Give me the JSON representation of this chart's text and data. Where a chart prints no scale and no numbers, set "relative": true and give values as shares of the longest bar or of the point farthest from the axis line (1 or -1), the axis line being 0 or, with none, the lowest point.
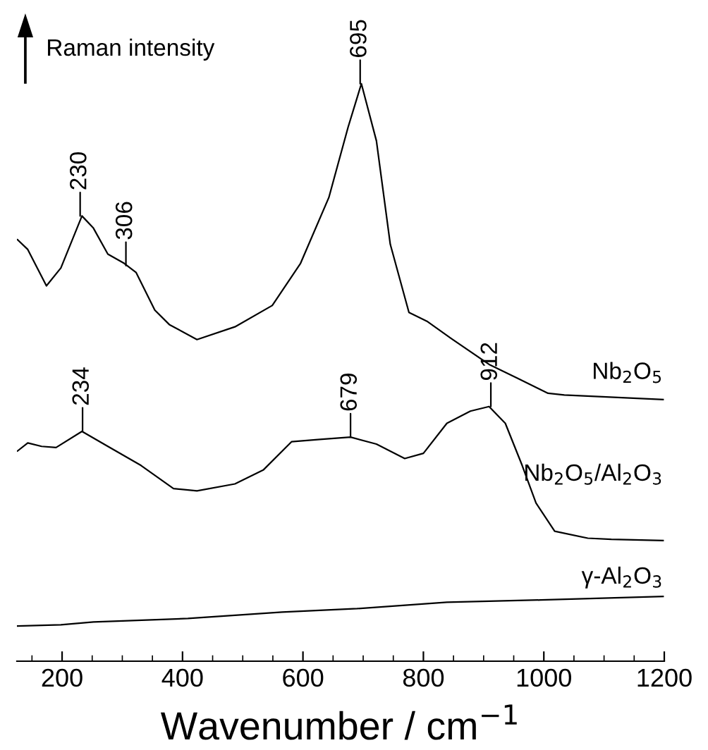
{
  "chart_data": {
    "type": "line",
    "relative": true,
    "xlabel": "Wavenumber / cm$^{−1}$",
    "ylabel": "Raman intensity",
    "xlim": [
      125,
      1200
    ],
    "xticks": [
      200,
      400,
      600,
      800,
      1000,
      1200
    ],
    "grid": false,
    "legend": false,
    "marker": "none",
    "line_style": "solid",
    "series": [
      {
        "name": "Nb$_{2}$O$_{5}$",
        "color": "#000000",
        "x": [
          126,
          143,
          174,
          198,
          233,
          252,
          276,
          303,
          323,
          354,
          378,
          424,
          487,
          549,
          596,
          643,
          675,
          697,
          722,
          745,
          776,
          807,
          846,
          909,
          956,
          1007,
          1034,
          1198
        ],
        "values": [
          0.73,
          0.713,
          0.65,
          0.681,
          0.771,
          0.75,
          0.705,
          0.689,
          0.673,
          0.608,
          0.583,
          0.557,
          0.579,
          0.616,
          0.689,
          0.803,
          0.925,
          1.0,
          0.901,
          0.722,
          0.604,
          0.588,
          0.559,
          0.514,
          0.49,
          0.464,
          0.461,
          0.453
        ]
      },
      {
        "name": "Nb$_{2}$O$_{5}$/Al$_{2}$O$_{3}$",
        "color": "#000000",
        "x": [
          126,
          143,
          166,
          190,
          233,
          276,
          331,
          385,
          424,
          487,
          534,
          581,
          628,
          679,
          722,
          769,
          800,
          839,
          878,
          909,
          936,
          964,
          987,
          1018,
          1073,
          1112,
          1198
        ],
        "values": [
          0.364,
          0.378,
          0.372,
          0.37,
          0.398,
          0.372,
          0.339,
          0.299,
          0.295,
          0.307,
          0.331,
          0.38,
          0.384,
          0.388,
          0.376,
          0.351,
          0.36,
          0.412,
          0.433,
          0.441,
          0.412,
          0.339,
          0.274,
          0.225,
          0.213,
          0.211,
          0.209
        ]
      },
      {
        "name": "γ-Al$_{2}$O$_{3}$",
        "color": "#000000",
        "x": [
          126,
          198,
          252,
          409,
          565,
          690,
          839,
          995,
          1198
        ],
        "values": [
          0.061,
          0.063,
          0.068,
          0.074,
          0.085,
          0.091,
          0.102,
          0.106,
          0.112
        ]
      }
    ],
    "annotations": [
      {
        "text": "230",
        "x": 230,
        "y": 0.771
      },
      {
        "text": "306",
        "x": 306,
        "y": 0.685
      },
      {
        "text": "695",
        "x": 695,
        "y": 1.0
      },
      {
        "text": "234",
        "x": 234,
        "y": 0.398
      },
      {
        "text": "679",
        "x": 679,
        "y": 0.388
      },
      {
        "text": "912",
        "x": 912,
        "y": 0.441
      }
    ]
  }
}
